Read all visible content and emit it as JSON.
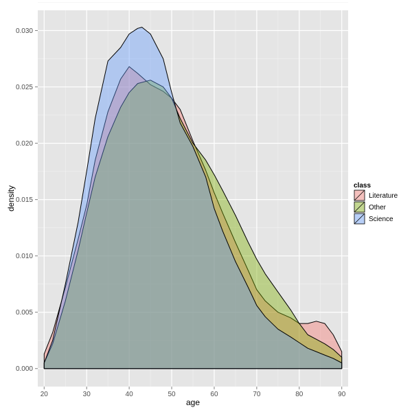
{
  "chart_data": {
    "type": "area",
    "xlabel": "age",
    "ylabel": "density",
    "xlim": [
      18.5,
      91.5
    ],
    "ylim": [
      -0.0016,
      0.0318
    ],
    "xticks": [
      20,
      30,
      40,
      50,
      60,
      70,
      80,
      90
    ],
    "xtick_labels": [
      "20",
      "30",
      "40",
      "50",
      "60",
      "70",
      "80",
      "90"
    ],
    "yticks": [
      0.0,
      0.005,
      0.01,
      0.015,
      0.02,
      0.025,
      0.03
    ],
    "ytick_labels": [
      "0.000",
      "0.005",
      "0.010",
      "0.015",
      "0.020",
      "0.025",
      "0.030"
    ],
    "grid": true,
    "legend": {
      "title": "class",
      "position": "right",
      "entries": [
        "Literature",
        "Other",
        "Science"
      ]
    },
    "series": [
      {
        "name": "Literature",
        "color": "#F8766D",
        "x": [
          20,
          22,
          25,
          28,
          30,
          32,
          35,
          38,
          40,
          42,
          45,
          48,
          50,
          52,
          55,
          58,
          60,
          62,
          65,
          68,
          70,
          72,
          75,
          78,
          80,
          82,
          84,
          86,
          88,
          90
        ],
        "y": [
          0.0013,
          0.0032,
          0.0072,
          0.0115,
          0.0145,
          0.0185,
          0.0228,
          0.0257,
          0.0268,
          0.0262,
          0.0252,
          0.0246,
          0.024,
          0.023,
          0.0202,
          0.0176,
          0.0156,
          0.0138,
          0.0112,
          0.0087,
          0.007,
          0.006,
          0.005,
          0.0045,
          0.004,
          0.004,
          0.0042,
          0.004,
          0.003,
          0.0015
        ]
      },
      {
        "name": "Other",
        "color": "#7CAE00",
        "x": [
          20,
          22,
          25,
          28,
          30,
          32,
          35,
          38,
          40,
          42,
          45,
          48,
          50,
          52,
          55,
          58,
          60,
          62,
          65,
          68,
          70,
          72,
          75,
          78,
          80,
          82,
          84,
          86,
          88,
          90
        ],
        "y": [
          0.0005,
          0.0022,
          0.006,
          0.0105,
          0.0138,
          0.017,
          0.0206,
          0.0232,
          0.0245,
          0.0253,
          0.0256,
          0.025,
          0.024,
          0.0222,
          0.02,
          0.0185,
          0.0172,
          0.0158,
          0.0136,
          0.0112,
          0.0097,
          0.0084,
          0.0068,
          0.0052,
          0.004,
          0.003,
          0.0026,
          0.0022,
          0.0017,
          0.001
        ]
      },
      {
        "name": "Science",
        "color": "#619CFF",
        "x": [
          20,
          22,
          25,
          28,
          30,
          32,
          35,
          38,
          40,
          42,
          43,
          45,
          48,
          50,
          52,
          55,
          58,
          60,
          62,
          65,
          68,
          70,
          72,
          75,
          78,
          80,
          82,
          84,
          86,
          88,
          90
        ],
        "y": [
          0.0005,
          0.0025,
          0.0075,
          0.013,
          0.0175,
          0.0222,
          0.0273,
          0.0285,
          0.0297,
          0.0302,
          0.0303,
          0.0297,
          0.0275,
          0.0245,
          0.0218,
          0.0197,
          0.017,
          0.0142,
          0.0122,
          0.0095,
          0.0072,
          0.0056,
          0.0046,
          0.0035,
          0.0028,
          0.0023,
          0.0018,
          0.0015,
          0.0012,
          0.0009,
          0.0005
        ]
      }
    ]
  }
}
